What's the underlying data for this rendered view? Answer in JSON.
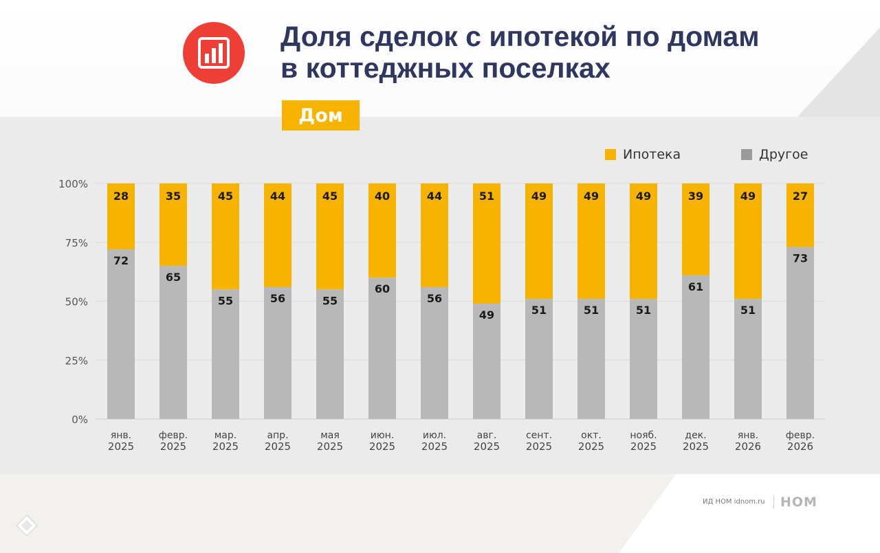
{
  "header": {
    "title_line1": "Доля сделок с ипотекой по домам",
    "title_line2": "в коттеджных поселках",
    "badge": "Дом"
  },
  "legend": {
    "mortgage": "Ипотека",
    "other": "Другое"
  },
  "footer": {
    "text": "ИД НОМ idnom.ru",
    "brand": "НОМ"
  },
  "colors": {
    "mortgage": "#f6b300",
    "other": "#b8b8b8",
    "title": "#2e3760",
    "logo": "#ef3e36"
  },
  "chart_data": {
    "type": "bar",
    "stacked": true,
    "categories": [
      [
        "янв.",
        "2025"
      ],
      [
        "февр.",
        "2025"
      ],
      [
        "мар.",
        "2025"
      ],
      [
        "апр.",
        "2025"
      ],
      [
        "мая",
        "2025"
      ],
      [
        "июн.",
        "2025"
      ],
      [
        "июл.",
        "2025"
      ],
      [
        "авг.",
        "2025"
      ],
      [
        "сент.",
        "2025"
      ],
      [
        "окт.",
        "2025"
      ],
      [
        "нояб.",
        "2025"
      ],
      [
        "дек.",
        "2025"
      ],
      [
        "янв.",
        "2026"
      ],
      [
        "февр.",
        "2026"
      ]
    ],
    "series": [
      {
        "name": "Другое",
        "values": [
          72,
          65,
          55,
          56,
          55,
          60,
          56,
          49,
          51,
          51,
          51,
          61,
          51,
          73
        ]
      },
      {
        "name": "Ипотека",
        "values": [
          28,
          35,
          45,
          44,
          45,
          40,
          44,
          51,
          49,
          49,
          49,
          39,
          49,
          27
        ]
      }
    ],
    "yticks": [
      "100%",
      "75%",
      "50%",
      "25%",
      "0%"
    ],
    "ylim": [
      0,
      100
    ],
    "legend_position": "top-right",
    "grid": true
  }
}
